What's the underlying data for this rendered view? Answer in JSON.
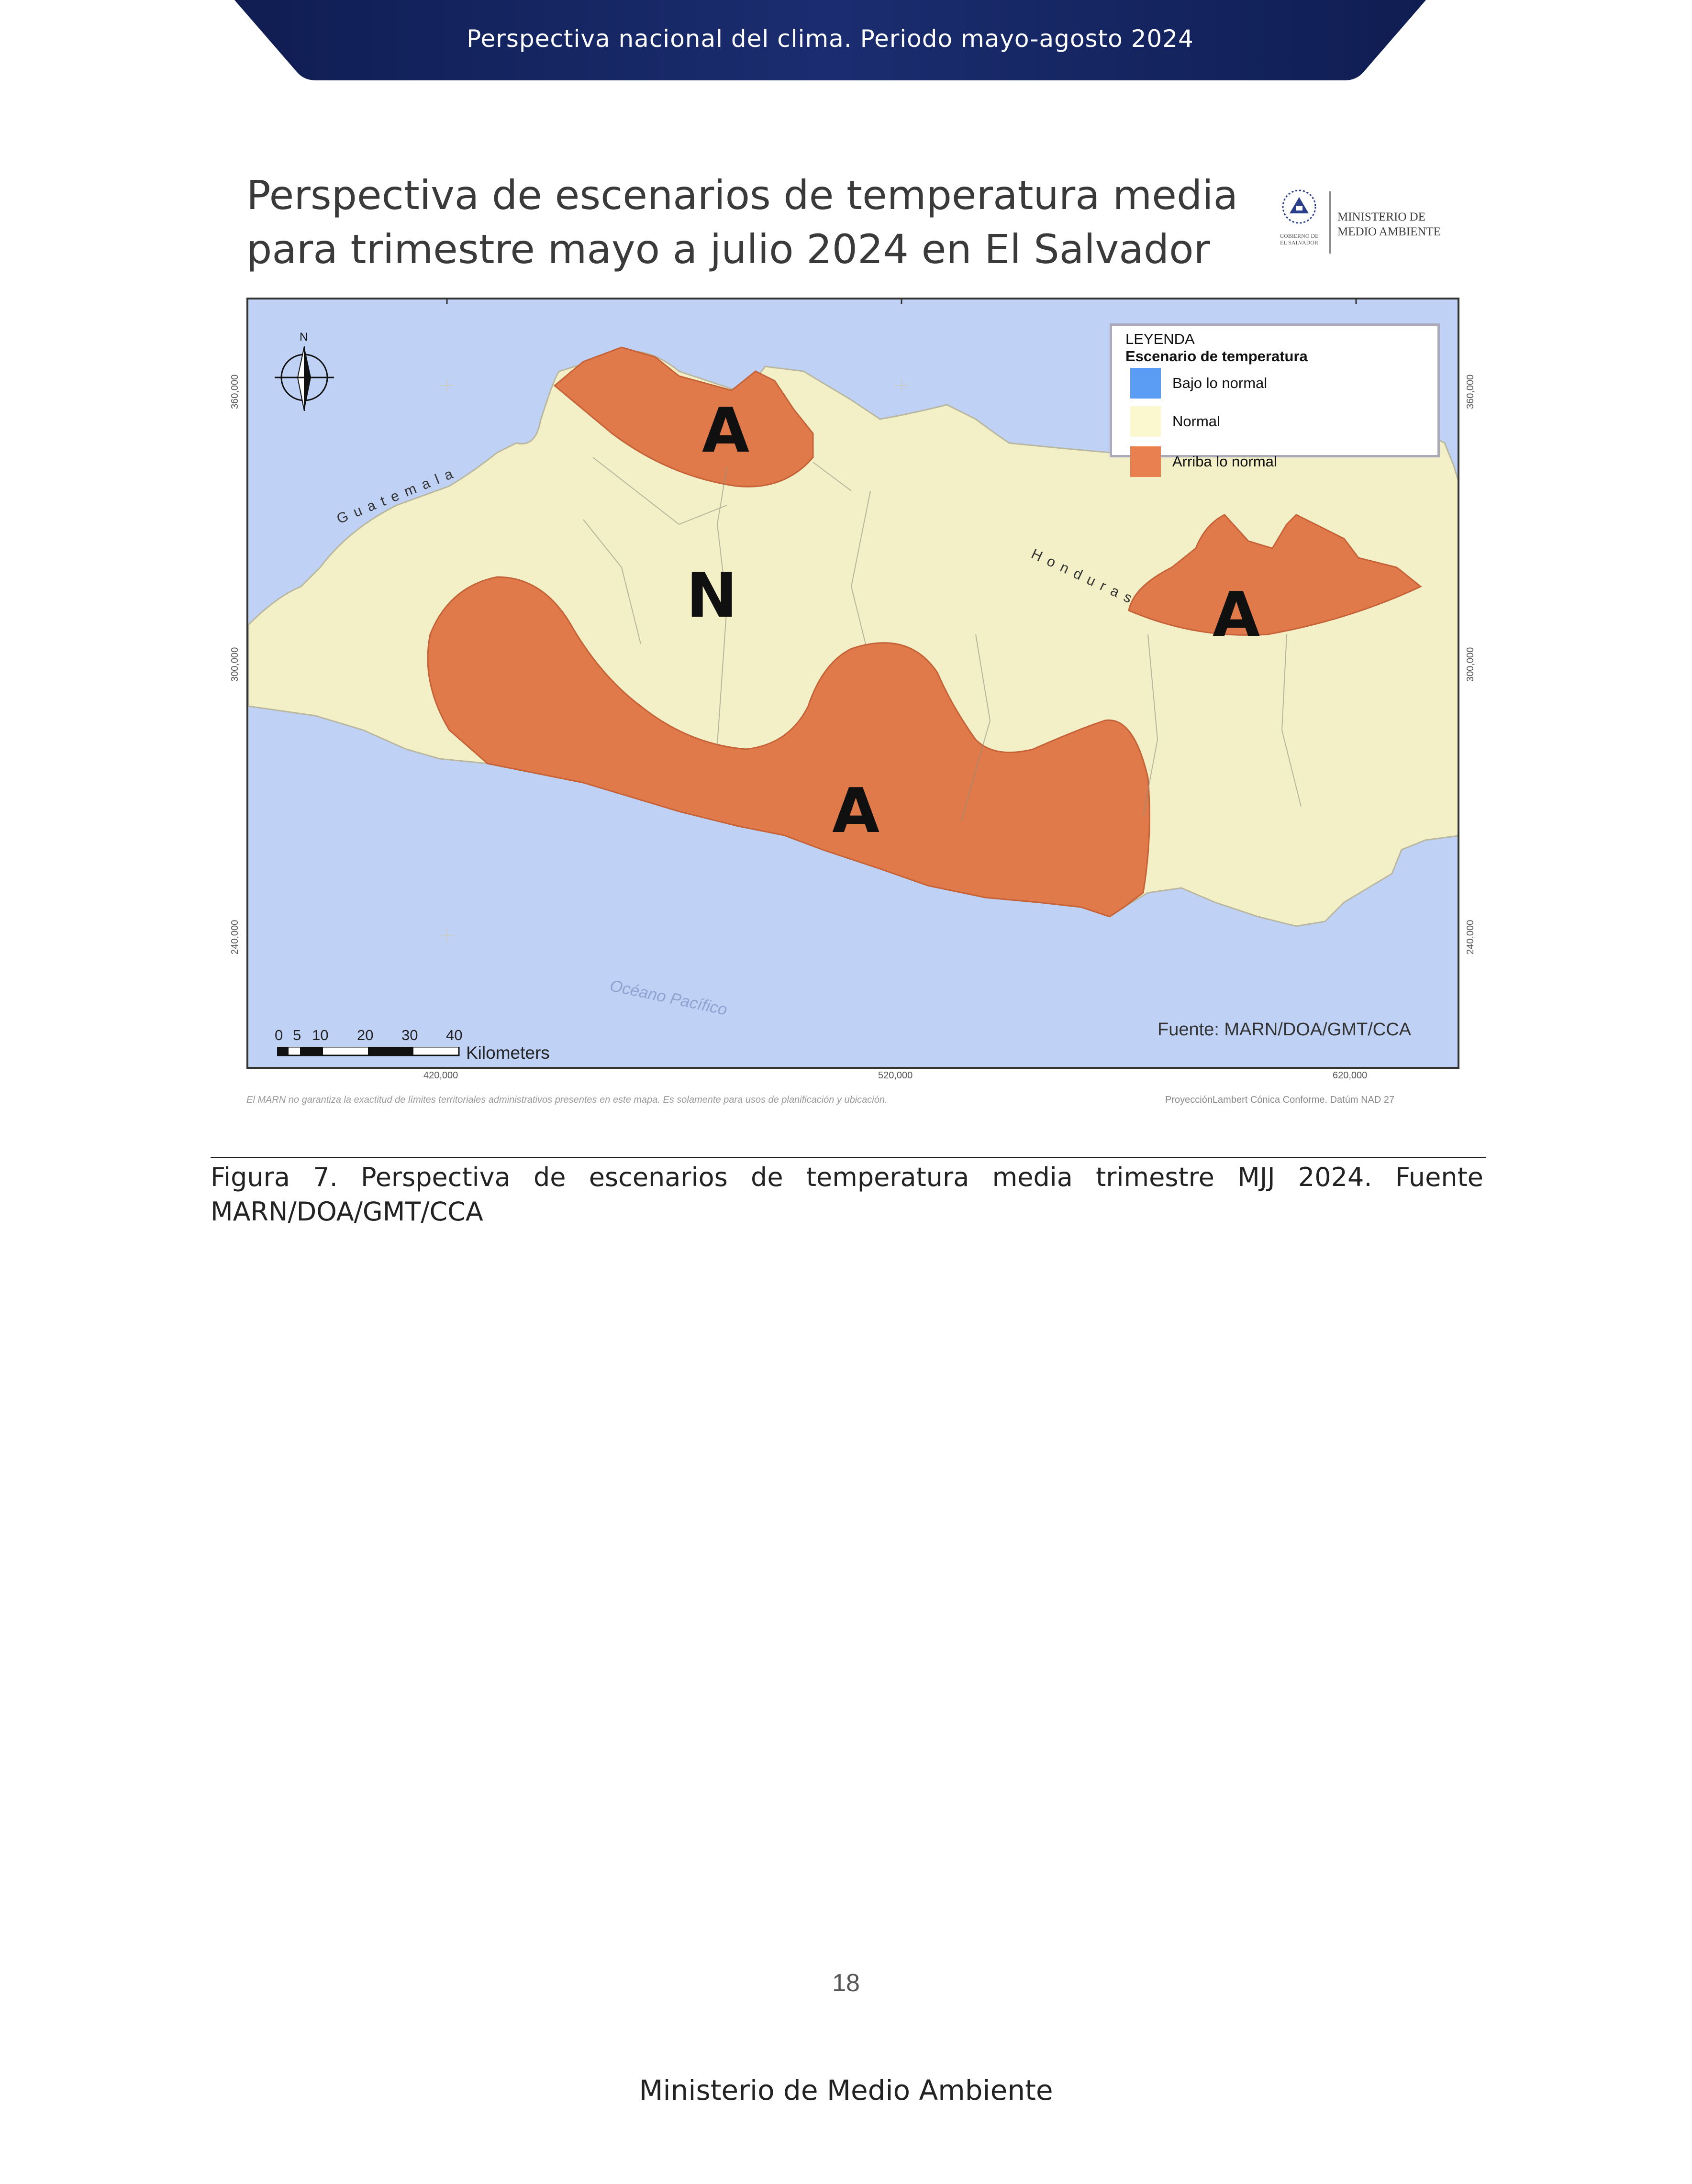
{
  "header": {
    "banner_text": "Perspectiva nacional del clima. Periodo mayo-agosto 2024"
  },
  "map": {
    "title_line1": "Perspectiva de escenarios de temperatura media",
    "title_line2": "para trimestre mayo a julio 2024 en El Salvador",
    "logo": {
      "ministry_line1": "MINISTERIO DE",
      "ministry_line2": "MEDIO AMBIENTE",
      "gov_line1": "GOBIERNO DE",
      "gov_line2": "EL SALVADOR"
    },
    "legend": {
      "title": "LEYENDA",
      "subtitle": "Escenario de temperatura",
      "items": [
        {
          "label": "Bajo lo normal",
          "color": "#5b9cf5"
        },
        {
          "label": "Normal",
          "color": "#fbf8cf"
        },
        {
          "label": "Arriba lo normal",
          "color": "#e8804f"
        }
      ]
    },
    "zone_labels": [
      "A",
      "N",
      "A",
      "A"
    ],
    "countries": {
      "guatemala": "Guatemala",
      "honduras": "Honduras"
    },
    "ocean": "Océano Pacífico",
    "source": "Fuente: MARN/DOA/GMT/CCA",
    "north_label": "N",
    "scale": {
      "numbers": [
        "0",
        "5",
        "10",
        "20",
        "30",
        "40"
      ],
      "unit": "Kilometers"
    },
    "x_ticks": [
      "420,000",
      "520,000",
      "620,000"
    ],
    "y_ticks": [
      "360,000",
      "300,000",
      "240,000"
    ],
    "disclaimer": "El MARN no garantiza la exactitud de límites territoriales administrativos presentes en este mapa. Es solamente para usos de planificación y ubicación.",
    "projection": "ProyecciónLambert Cónica Conforme. Datúm NAD 27"
  },
  "caption": "Figura 7. Perspectiva de escenarios de temperatura media trimestre MJJ 2024. Fuente MARN/DOA/GMT/CCA",
  "page_number": "18",
  "footer": "Ministerio de Medio Ambiente",
  "colors": {
    "banner": "#16245a",
    "normal": "#f3f0c8",
    "above": "#e07a4a",
    "ocean": "#bfd2f6"
  }
}
